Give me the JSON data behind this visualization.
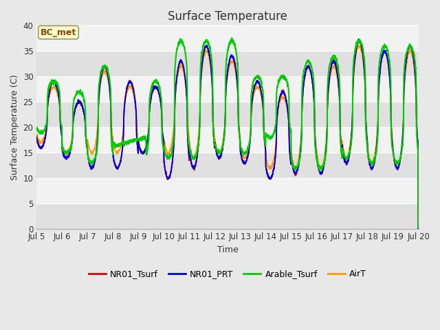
{
  "title": "Surface Temperature",
  "xlabel": "Time",
  "ylabel": "Surface Temperature (C)",
  "ylim": [
    0,
    40
  ],
  "yticks": [
    0,
    5,
    10,
    15,
    20,
    25,
    30,
    35,
    40
  ],
  "fig_bg": "#e8e8e8",
  "plot_bg_light": "#f2f2f2",
  "plot_bg_dark": "#e0e0e0",
  "annotation_text": "BC_met",
  "annotation_bg": "#ffffcc",
  "annotation_border": "#8B4513",
  "series_colors": {
    "NR01_Tsurf": "#dd0000",
    "NR01_PRT": "#0000dd",
    "Arable_Tsurf": "#00cc00",
    "AirT": "#ff9900"
  },
  "legend_labels": [
    "NR01_Tsurf",
    "NR01_PRT",
    "Arable_Tsurf",
    "AirT"
  ],
  "xtick_labels": [
    "Jul 5",
    "Jul 6",
    "Jul 7",
    "Jul 8",
    "Jul 9",
    "Jul 10",
    "Jul 11",
    "Jul 12",
    "Jul 13",
    "Jul 14",
    "Jul 15",
    "Jul 16",
    "Jul 17",
    "Jul 18",
    "Jul 19",
    "Jul 20"
  ],
  "num_points_per_day": 144
}
